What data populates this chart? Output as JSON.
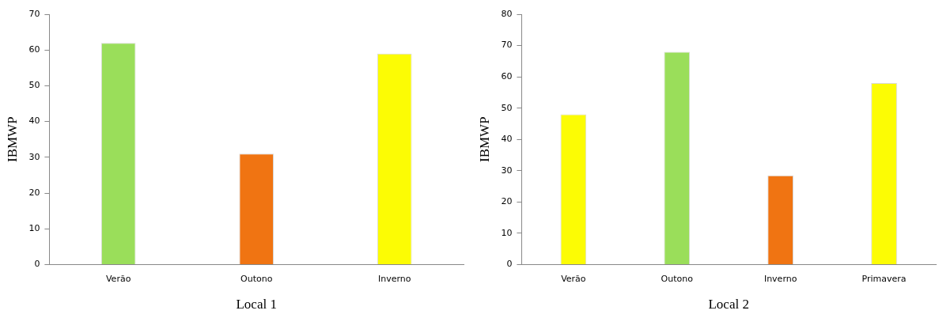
{
  "chart_data": [
    {
      "type": "bar",
      "xlabel": "Local 1",
      "ylabel": "IBMWP",
      "categories": [
        "Verão",
        "Outono",
        "Inverno"
      ],
      "values": [
        62,
        31,
        59
      ],
      "colors": [
        "#9ade5a",
        "#f07412",
        "#fcfc04"
      ],
      "ylim": [
        0,
        70
      ],
      "yticks": [
        0,
        10,
        20,
        30,
        40,
        50,
        60,
        70
      ],
      "grid": false,
      "legend": false
    },
    {
      "type": "bar",
      "xlabel": "Local 2",
      "ylabel": "IBMWP",
      "categories": [
        "Verão",
        "Outono",
        "Inverno",
        "Primavera"
      ],
      "values": [
        48,
        68,
        28.5,
        58
      ],
      "colors": [
        "#fcfc04",
        "#9ade5a",
        "#f07412",
        "#fcfc04"
      ],
      "ylim": [
        0,
        80
      ],
      "yticks": [
        0,
        10,
        20,
        30,
        40,
        50,
        60,
        70,
        80
      ],
      "grid": false,
      "legend": false
    }
  ]
}
